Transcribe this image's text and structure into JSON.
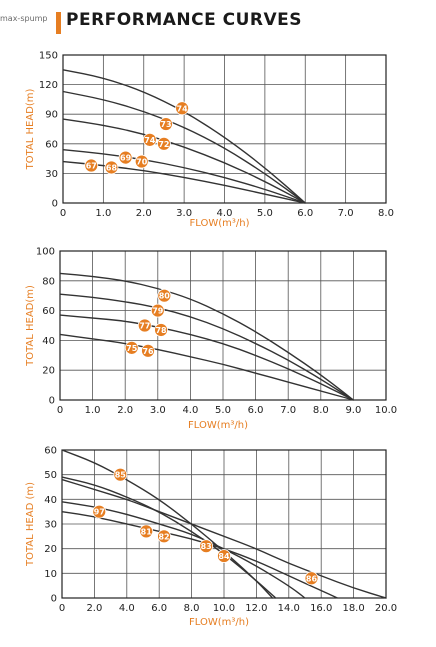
{
  "header": {
    "title": "PERFORMANCE CURVES",
    "watermark": "max-spump"
  },
  "colors": {
    "accent": "#e67e22",
    "curve": "#333333",
    "grid": "#555555",
    "label": "#e67e22"
  },
  "chart_data": [
    {
      "type": "line",
      "xlabel": "FLOW(m³/h)",
      "ylabel": "TOTAL HEAD(m)",
      "xlim": [
        0,
        8
      ],
      "ylim": [
        0,
        150
      ],
      "xticks": [
        0,
        1,
        2,
        3,
        4,
        5,
        6,
        7,
        8
      ],
      "yticks": [
        0,
        30,
        60,
        90,
        120,
        150
      ],
      "xtick_labels": [
        "0",
        "1.0",
        "2.0",
        "3.0",
        "4.0",
        "5.0",
        "6.0",
        "7.0",
        "8.0"
      ],
      "ytick_labels": [
        "0",
        "30",
        "60",
        "90",
        "120",
        "150"
      ],
      "grid": true,
      "series": [
        {
          "points": [
            [
              0,
              135
            ],
            [
              1,
              127
            ],
            [
              2,
              113
            ],
            [
              3,
              93
            ],
            [
              4,
              67
            ],
            [
              5,
              36
            ],
            [
              6,
              0
            ]
          ]
        },
        {
          "points": [
            [
              0,
              113
            ],
            [
              1,
              105
            ],
            [
              2,
              93
            ],
            [
              3,
              77
            ],
            [
              4,
              56
            ],
            [
              5,
              30
            ],
            [
              6,
              0
            ]
          ]
        },
        {
          "points": [
            [
              0,
              85
            ],
            [
              1,
              79
            ],
            [
              2,
              70
            ],
            [
              3,
              57
            ],
            [
              4,
              41
            ],
            [
              5,
              22
            ],
            [
              6,
              0
            ]
          ]
        },
        {
          "points": [
            [
              0,
              54
            ],
            [
              1,
              50
            ],
            [
              2,
              44
            ],
            [
              3,
              36
            ],
            [
              4,
              26
            ],
            [
              5,
              14
            ],
            [
              6,
              0
            ]
          ]
        },
        {
          "points": [
            [
              0,
              42
            ],
            [
              1,
              38
            ],
            [
              2,
              33
            ],
            [
              3,
              26
            ],
            [
              4,
              18
            ],
            [
              5,
              9
            ],
            [
              6,
              0
            ]
          ]
        }
      ],
      "efficiency_markers": [
        {
          "label": "74",
          "x": 2.95,
          "y": 96
        },
        {
          "label": "73",
          "x": 2.55,
          "y": 80
        },
        {
          "label": "74",
          "x": 2.15,
          "y": 64
        },
        {
          "label": "72",
          "x": 2.5,
          "y": 60
        },
        {
          "label": "69",
          "x": 1.55,
          "y": 46
        },
        {
          "label": "70",
          "x": 1.95,
          "y": 42
        },
        {
          "label": "67",
          "x": 0.7,
          "y": 38
        },
        {
          "label": "68",
          "x": 1.2,
          "y": 36
        }
      ]
    },
    {
      "type": "line",
      "xlabel": "FLOW(m³/h)",
      "ylabel": "TOTAL HEAD(m)",
      "xlim": [
        0,
        10
      ],
      "ylim": [
        0,
        100
      ],
      "xticks": [
        0,
        1,
        2,
        3,
        4,
        5,
        6,
        7,
        8,
        9,
        10
      ],
      "yticks": [
        0,
        20,
        40,
        60,
        80,
        100
      ],
      "xtick_labels": [
        "0",
        "1.0",
        "2.0",
        "3.0",
        "4.0",
        "5.0",
        "6.0",
        "7.0",
        "8.0",
        "9.0",
        "10.0"
      ],
      "ytick_labels": [
        "0",
        "20",
        "40",
        "60",
        "80",
        "100"
      ],
      "grid": true,
      "series": [
        {
          "points": [
            [
              0,
              85
            ],
            [
              1,
              83
            ],
            [
              2,
              80
            ],
            [
              3,
              75
            ],
            [
              4,
              68
            ],
            [
              5,
              58
            ],
            [
              6,
              46
            ],
            [
              7,
              32
            ],
            [
              8,
              17
            ],
            [
              9,
              0
            ]
          ]
        },
        {
          "points": [
            [
              0,
              71
            ],
            [
              1,
              69
            ],
            [
              2,
              66
            ],
            [
              3,
              62
            ],
            [
              4,
              56
            ],
            [
              5,
              48
            ],
            [
              6,
              38
            ],
            [
              7,
              27
            ],
            [
              8,
              14
            ],
            [
              9,
              0
            ]
          ]
        },
        {
          "points": [
            [
              0,
              57
            ],
            [
              1,
              55
            ],
            [
              2,
              53
            ],
            [
              3,
              49
            ],
            [
              4,
              44
            ],
            [
              5,
              38
            ],
            [
              6,
              30
            ],
            [
              7,
              21
            ],
            [
              8,
              11
            ],
            [
              9,
              0
            ]
          ]
        },
        {
          "points": [
            [
              0,
              44
            ],
            [
              1,
              41
            ],
            [
              2,
              38
            ],
            [
              3,
              34
            ],
            [
              4,
              29
            ],
            [
              5,
              24
            ],
            [
              6,
              18
            ],
            [
              7,
              12
            ],
            [
              8,
              6
            ],
            [
              9,
              0
            ]
          ]
        }
      ],
      "efficiency_markers": [
        {
          "label": "80",
          "x": 3.2,
          "y": 70
        },
        {
          "label": "79",
          "x": 3.0,
          "y": 60
        },
        {
          "label": "77",
          "x": 2.6,
          "y": 50
        },
        {
          "label": "78",
          "x": 3.1,
          "y": 47
        },
        {
          "label": "75",
          "x": 2.2,
          "y": 35
        },
        {
          "label": "76",
          "x": 2.7,
          "y": 33
        }
      ]
    },
    {
      "type": "line",
      "xlabel": "FLOW(m³/h)",
      "ylabel": "TOTAL HEAD (m)",
      "xlim": [
        0,
        20
      ],
      "ylim": [
        0,
        60
      ],
      "xticks": [
        0,
        2,
        4,
        6,
        8,
        10,
        12,
        14,
        16,
        18,
        20
      ],
      "yticks": [
        0,
        10,
        20,
        30,
        40,
        50,
        60
      ],
      "xtick_labels": [
        "0",
        "2.0",
        "4.0",
        "6.0",
        "8.0",
        "10.0",
        "12.0",
        "14.0",
        "16.0",
        "18.0",
        "20.0"
      ],
      "ytick_labels": [
        "0",
        "10",
        "20",
        "30",
        "40",
        "50",
        "60"
      ],
      "grid": true,
      "series": [
        {
          "points": [
            [
              0,
              60
            ],
            [
              2,
              55
            ],
            [
              4,
              48
            ],
            [
              6,
              40
            ],
            [
              8,
              30
            ],
            [
              10,
              19
            ],
            [
              12,
              7
            ],
            [
              13,
              0
            ]
          ]
        },
        {
          "points": [
            [
              0,
              49
            ],
            [
              2,
              46
            ],
            [
              4,
              41
            ],
            [
              6,
              35
            ],
            [
              8,
              27
            ],
            [
              10,
              18
            ],
            [
              12,
              7
            ],
            [
              13.2,
              0
            ]
          ]
        },
        {
          "points": [
            [
              0,
              39
            ],
            [
              2,
              37
            ],
            [
              4,
              34
            ],
            [
              6,
              30
            ],
            [
              8,
              26
            ],
            [
              10,
              20
            ],
            [
              12,
              13
            ],
            [
              14,
              5
            ],
            [
              15,
              0
            ]
          ]
        },
        {
          "points": [
            [
              0,
              35
            ],
            [
              2,
              33
            ],
            [
              4,
              30
            ],
            [
              6,
              27
            ],
            [
              8,
              24
            ],
            [
              10,
              20
            ],
            [
              12,
              15
            ],
            [
              14,
              9
            ],
            [
              16,
              3
            ],
            [
              17,
              0
            ]
          ]
        },
        {
          "points": [
            [
              0,
              48
            ],
            [
              2,
              44
            ],
            [
              4,
              40
            ],
            [
              6,
              35
            ],
            [
              8,
              30
            ],
            [
              10,
              25
            ],
            [
              12,
              20
            ],
            [
              14,
              14
            ],
            [
              16,
              9
            ],
            [
              18,
              4
            ],
            [
              20,
              0
            ]
          ]
        }
      ],
      "efficiency_markers": [
        {
          "label": "85",
          "x": 3.6,
          "y": 50
        },
        {
          "label": "97",
          "x": 2.3,
          "y": 35
        },
        {
          "label": "81",
          "x": 5.2,
          "y": 27
        },
        {
          "label": "82",
          "x": 6.3,
          "y": 25
        },
        {
          "label": "83",
          "x": 8.9,
          "y": 21
        },
        {
          "label": "84",
          "x": 10.0,
          "y": 17
        },
        {
          "label": "86",
          "x": 15.4,
          "y": 8
        }
      ]
    }
  ]
}
